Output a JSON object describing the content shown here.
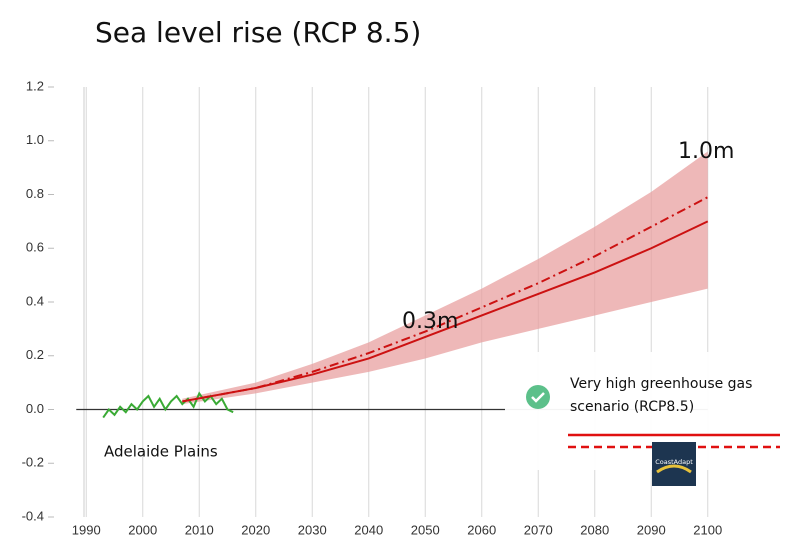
{
  "chart_data": {
    "type": "line",
    "title": "Sea level rise (RCP 8.5)",
    "xlim": [
      1985,
      2105
    ],
    "xticks": [
      1990,
      2000,
      2010,
      2020,
      2030,
      2040,
      2050,
      2060,
      2070,
      2080,
      2090,
      2100
    ],
    "ylim": [
      -0.4,
      1.2
    ],
    "yticks": [
      {
        "value": 1.2,
        "label": "1.2"
      },
      {
        "value": 1.0,
        "label": "1.0"
      },
      0.8,
      0.6,
      0.4,
      0.2,
      {
        "value": 0,
        "label": "0.0"
      },
      -0.2,
      -0.4
    ],
    "grid": true,
    "band": {
      "color": "#e8a0a0",
      "x": [
        2007,
        2020,
        2030,
        2040,
        2050,
        2060,
        2070,
        2080,
        2090,
        2100
      ],
      "upper": [
        0.04,
        0.1,
        0.17,
        0.25,
        0.35,
        0.45,
        0.56,
        0.68,
        0.81,
        0.96
      ],
      "lower": [
        0.02,
        0.06,
        0.1,
        0.14,
        0.19,
        0.25,
        0.3,
        0.35,
        0.4,
        0.45
      ]
    },
    "series": [
      {
        "color": "#3aaa35",
        "style": "solid",
        "x": [
          1993,
          1994,
          1995,
          1996,
          1997,
          1998,
          1999,
          2000,
          2001,
          2002,
          2003,
          2004,
          2005,
          2006,
          2007,
          2008,
          2009,
          2010,
          2011,
          2012,
          2013,
          2014,
          2015,
          2016
        ],
        "values": [
          -0.03,
          0.0,
          -0.02,
          0.01,
          -0.01,
          0.02,
          0.0,
          0.03,
          0.05,
          0.01,
          0.04,
          0.0,
          0.03,
          0.05,
          0.02,
          0.04,
          0.01,
          0.06,
          0.03,
          0.05,
          0.02,
          0.04,
          0.0,
          -0.01
        ]
      },
      {
        "color": "#cc1111",
        "style": "solid",
        "x": [
          2007,
          2020,
          2030,
          2040,
          2050,
          2060,
          2070,
          2080,
          2090,
          2100
        ],
        "values": [
          0.03,
          0.08,
          0.13,
          0.19,
          0.27,
          0.35,
          0.43,
          0.51,
          0.6,
          0.7
        ]
      },
      {
        "color": "#cc1111",
        "style": "dashdot",
        "x": [
          2007,
          2020,
          2030,
          2040,
          2050,
          2060,
          2070,
          2080,
          2090,
          2100
        ],
        "values": [
          0.03,
          0.08,
          0.14,
          0.21,
          0.29,
          0.38,
          0.47,
          0.57,
          0.68,
          0.79
        ]
      }
    ],
    "annotations": [
      "1.0m",
      "0.3m",
      "Adelaide Plains"
    ],
    "legend": {
      "label_line1": "Very high greenhouse gas",
      "label_line2": "scenario (RCP8.5)",
      "logo": "CoastAdapt"
    }
  }
}
